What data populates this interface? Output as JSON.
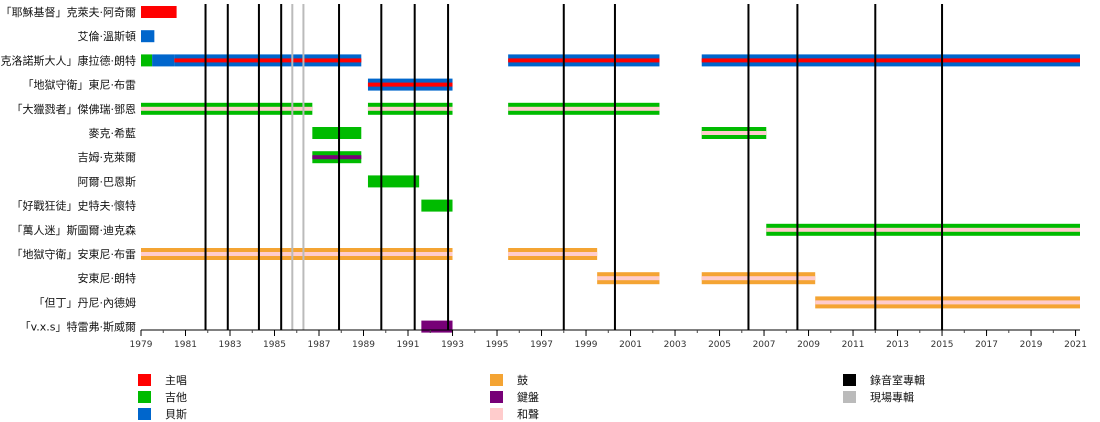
{
  "chart_data": {
    "type": "timeline",
    "title": "",
    "xlim": [
      1979,
      2021.2
    ],
    "x_ticks": [
      1979,
      1981,
      1983,
      1985,
      1987,
      1989,
      1991,
      1993,
      1995,
      1997,
      1999,
      2001,
      2003,
      2005,
      2007,
      2009,
      2011,
      2013,
      2015,
      2017,
      2019,
      2021
    ],
    "colors": {
      "vocals": "#ff0000",
      "guitar": "#00bb00",
      "bass": "#0066cc",
      "drums": "#f4a433",
      "keyboards": "#770077",
      "backing": "#ffcccc",
      "studio": "#000000",
      "live": "#bbbbbb"
    },
    "members": [
      {
        "name": "「耶穌基督」克萊夫·阿奇爾",
        "bars": [
          {
            "start": 1979,
            "end": 1980.6,
            "role": "vocals"
          }
        ]
      },
      {
        "name": "艾倫·溫斯頓",
        "bars": [
          {
            "start": 1979,
            "end": 1979.6,
            "role": "bass"
          }
        ]
      },
      {
        "name": "克洛諾斯大人」康拉德·朗特",
        "bars": [
          {
            "start": 1979,
            "end": 1979.5,
            "role": "guitar"
          },
          {
            "start": 1979.5,
            "end": 1980.5,
            "role": "bass"
          },
          {
            "start": 1980.5,
            "end": 1988.9,
            "role": "bass",
            "inner": "vocals"
          },
          {
            "start": 1995.5,
            "end": 2002.3,
            "role": "bass",
            "inner": "vocals"
          },
          {
            "start": 2004.2,
            "end": 2021.2,
            "role": "bass",
            "inner": "vocals"
          }
        ]
      },
      {
        "name": "「地獄守衛」東尼·布雷",
        "bars": [
          {
            "start": 1989.2,
            "end": 1993,
            "role": "bass",
            "inner": "vocals"
          }
        ]
      },
      {
        "name": "「大獵戮者」傑佛瑞·鄧恩",
        "bars": [
          {
            "start": 1979,
            "end": 1986.7,
            "role": "guitar",
            "inner": "backing"
          },
          {
            "start": 1989.2,
            "end": 1993,
            "role": "guitar",
            "inner": "backing"
          },
          {
            "start": 1995.5,
            "end": 2002.3,
            "role": "guitar",
            "inner": "backing"
          }
        ]
      },
      {
        "name": "麥克·希藍",
        "bars": [
          {
            "start": 1986.7,
            "end": 1988.9,
            "role": "guitar"
          },
          {
            "start": 2004.2,
            "end": 2007.1,
            "role": "guitar",
            "inner": "backing"
          }
        ]
      },
      {
        "name": "吉姆·克萊爾",
        "bars": [
          {
            "start": 1986.7,
            "end": 1988.9,
            "role": "guitar",
            "inner": "keyboards"
          }
        ]
      },
      {
        "name": "阿爾·巴恩斯",
        "bars": [
          {
            "start": 1989.2,
            "end": 1991.5,
            "role": "guitar"
          }
        ]
      },
      {
        "name": "「好戰狂徒」史特夫·懷特",
        "bars": [
          {
            "start": 1991.6,
            "end": 1993,
            "role": "guitar"
          }
        ]
      },
      {
        "name": "「萬人迷」斯圖爾·迪克森",
        "bars": [
          {
            "start": 2007.1,
            "end": 2021.2,
            "role": "guitar",
            "inner": "backing"
          }
        ]
      },
      {
        "name": "「地獄守衛」安東尼·布雷",
        "bars": [
          {
            "start": 1979,
            "end": 1993,
            "role": "drums",
            "inner": "backing"
          },
          {
            "start": 1995.5,
            "end": 1999.5,
            "role": "drums",
            "inner": "backing"
          }
        ]
      },
      {
        "name": "安東尼·朗特",
        "bars": [
          {
            "start": 1999.5,
            "end": 2002.3,
            "role": "drums",
            "inner": "backing"
          },
          {
            "start": 2004.2,
            "end": 2009.3,
            "role": "drums",
            "inner": "backing"
          }
        ]
      },
      {
        "name": "「但丁」丹尼·內德姆",
        "bars": [
          {
            "start": 2009.3,
            "end": 2021.2,
            "role": "drums",
            "inner": "backing"
          }
        ]
      },
      {
        "name": "「v.x.s」特雷弗·斯威爾",
        "bars": [
          {
            "start": 1991.6,
            "end": 1993,
            "role": "keyboards"
          }
        ]
      }
    ],
    "studio_albums": [
      1981.9,
      1982.9,
      1984.3,
      1985.3,
      1987.9,
      1989.8,
      1991.3,
      1992.8,
      1998,
      2000.3,
      2006.3,
      2008.5,
      2012,
      2015
    ],
    "live_albums": [
      1985.8,
      1986.3
    ],
    "legend": [
      {
        "label": "主唱",
        "key": "vocals"
      },
      {
        "label": "吉他",
        "key": "guitar"
      },
      {
        "label": "貝斯",
        "key": "bass"
      },
      {
        "label": "鼓",
        "key": "drums"
      },
      {
        "label": "鍵盤",
        "key": "keyboards"
      },
      {
        "label": "和聲",
        "key": "backing"
      },
      {
        "label": "錄音室專輯",
        "key": "studio"
      },
      {
        "label": "現場專輯",
        "key": "live"
      }
    ]
  }
}
